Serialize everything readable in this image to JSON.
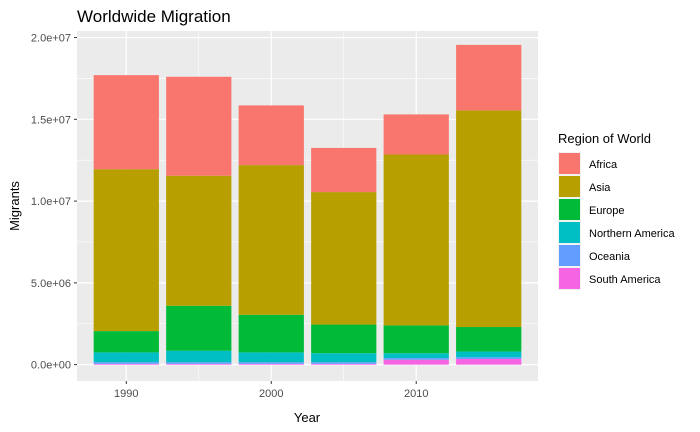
{
  "chart_data": {
    "type": "bar",
    "stacked": true,
    "title": "Worldwide Migration",
    "xlabel": "Year",
    "ylabel": "Migrants",
    "x": [
      1990,
      1995,
      2000,
      2005,
      2010,
      2015
    ],
    "x_ticks": [
      1990,
      2000,
      2010
    ],
    "x_tick_labels": [
      "1990",
      "2000",
      "2010"
    ],
    "xlim": [
      1986.6,
      2018.4
    ],
    "ylim": [
      -1000000,
      20400000
    ],
    "y_ticks": [
      0,
      5000000,
      10000000,
      15000000,
      20000000
    ],
    "y_tick_labels": [
      "0.0e+00",
      "5.0e+06",
      "1.0e+07",
      "1.5e+07",
      "2.0e+07"
    ],
    "grid": true,
    "legend_title": "Region of World",
    "legend_position": "right",
    "series": [
      {
        "name": "South America",
        "color": "#F564E3",
        "values": [
          50000,
          50000,
          50000,
          50000,
          300000,
          350000
        ]
      },
      {
        "name": "Oceania",
        "color": "#619CFF",
        "values": [
          100000,
          100000,
          100000,
          100000,
          100000,
          100000
        ]
      },
      {
        "name": "Northern America",
        "color": "#00BFC4",
        "values": [
          600000,
          700000,
          600000,
          550000,
          300000,
          350000
        ]
      },
      {
        "name": "Europe",
        "color": "#00BA38",
        "values": [
          1300000,
          2750000,
          2300000,
          1750000,
          1700000,
          1500000
        ]
      },
      {
        "name": "Asia",
        "color": "#B79F00",
        "values": [
          9900000,
          7950000,
          9150000,
          8100000,
          10450000,
          13250000
        ]
      },
      {
        "name": "Africa",
        "color": "#F8766D",
        "values": [
          5750000,
          6050000,
          3650000,
          2700000,
          2450000,
          4000000
        ]
      }
    ],
    "legend_order": [
      "Africa",
      "Asia",
      "Europe",
      "Northern America",
      "Oceania",
      "South America"
    ]
  }
}
